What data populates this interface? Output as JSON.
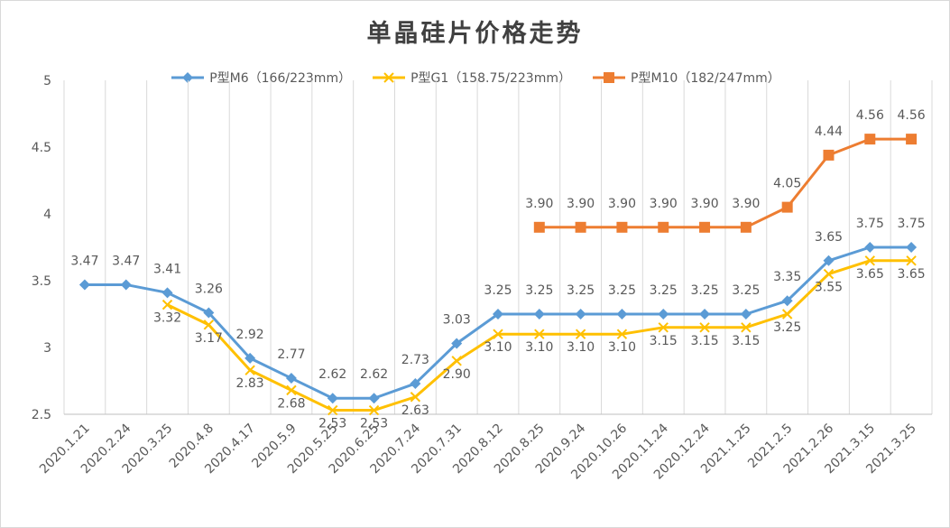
{
  "chart_data": {
    "type": "line",
    "title": "单晶硅片价格走势",
    "xlabel": "",
    "ylabel": "",
    "ylim": [
      2.5,
      5
    ],
    "yticks": [
      "2.5",
      "3",
      "3.5",
      "4",
      "4.5",
      "5"
    ],
    "grid": "vertical gridlines on",
    "legend_position": "top",
    "categories": [
      "2020.1.21",
      "2020.2.24",
      "2020.3.25",
      "2020.4.8",
      "2020.4.17",
      "2020.5.9",
      "2020.5.25",
      "2020.6.25",
      "2020.7.24",
      "2020.7.31",
      "2020.8.12",
      "2020.8.25",
      "2020.9.24",
      "2020.10.26",
      "2020.11.24",
      "2020.12.24",
      "2021.1.25",
      "2021.2.5",
      "2021.2.26",
      "2021.3.15",
      "2021.3.25"
    ],
    "series": [
      {
        "name": "P型M6（166/223mm）",
        "color": "#5b9bd5",
        "marker": "diamond",
        "values": [
          3.47,
          3.47,
          3.41,
          3.26,
          2.92,
          2.77,
          2.62,
          2.62,
          2.73,
          3.03,
          3.25,
          3.25,
          3.25,
          3.25,
          3.25,
          3.25,
          3.25,
          3.35,
          3.65,
          3.75,
          3.75
        ],
        "labels": [
          "3.47",
          "3.47",
          "3.41",
          "3.26",
          "2.92",
          "2.77",
          "2.62",
          "2.62",
          "2.73",
          "3.03",
          "3.25",
          "3.25",
          "3.25",
          "3.25",
          "3.25",
          "3.25",
          "3.25",
          "3.35",
          "3.65",
          "3.75",
          "3.75"
        ]
      },
      {
        "name": "P型G1（158.75/223mm）",
        "color": "#ffc000",
        "marker": "x",
        "values": [
          null,
          null,
          3.32,
          3.17,
          2.83,
          2.68,
          2.53,
          2.53,
          2.63,
          2.9,
          3.1,
          3.1,
          3.1,
          3.1,
          3.15,
          3.15,
          3.15,
          3.25,
          3.55,
          3.65,
          3.65
        ],
        "labels": [
          null,
          null,
          "3.32",
          "3.17",
          "2.83",
          "2.68",
          "2.53",
          "2.53",
          "2.63",
          "2.90",
          "3.10",
          "3.10",
          "3.10",
          "3.10",
          "3.15",
          "3.15",
          "3.15",
          "3.25",
          "3.55",
          "3.65",
          "3.65"
        ]
      },
      {
        "name": "P型M10（182/247mm）",
        "color": "#ed7d31",
        "marker": "square",
        "values": [
          null,
          null,
          null,
          null,
          null,
          null,
          null,
          null,
          null,
          null,
          null,
          3.9,
          3.9,
          3.9,
          3.9,
          3.9,
          3.9,
          4.05,
          4.44,
          4.56,
          4.56
        ],
        "labels": [
          null,
          null,
          null,
          null,
          null,
          null,
          null,
          null,
          null,
          null,
          null,
          "3.90",
          "3.90",
          "3.90",
          "3.90",
          "3.90",
          "3.90",
          "4.05",
          "4.44",
          "4.56",
          "4.56"
        ]
      }
    ]
  }
}
